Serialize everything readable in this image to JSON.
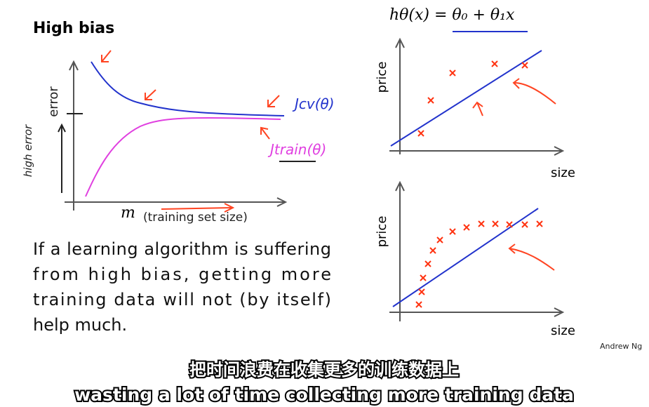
{
  "header": {
    "title": "High bias"
  },
  "left_chart": {
    "y_label": "error",
    "x_symbol": "m",
    "x_label": "(training set size)",
    "annotation_high_error": "high error",
    "curve_labels": {
      "cv": "Jcv(θ)",
      "train": "Jtrain(θ)"
    }
  },
  "paragraph": [
    "If a learning algorithm is suffering",
    "from high bias, getting more",
    "training data will not (by itself)",
    "help much."
  ],
  "right_chart": {
    "formula": "hθ(x) = θ₀ + θ₁x",
    "plots": [
      {
        "y_label": "price",
        "x_label": "size"
      },
      {
        "y_label": "price",
        "x_label": "size"
      }
    ]
  },
  "footer": {
    "author": "Andrew Ng"
  },
  "subtitles": {
    "zh": "把时间浪费在收集更多的训练数据上",
    "en": "wasting a lot of time collecting more training data"
  }
}
